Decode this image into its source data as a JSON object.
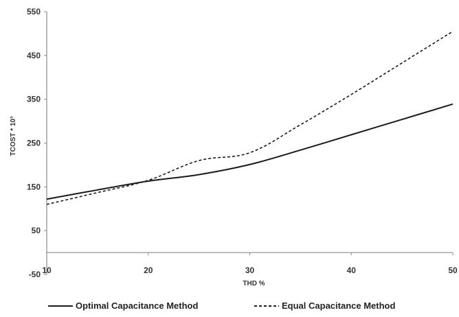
{
  "chart_data": {
    "type": "line",
    "title": "",
    "xlabel": "THD %",
    "ylabel": "TCOST * 10³",
    "xlim": [
      10,
      50
    ],
    "ylim": [
      -50,
      550
    ],
    "x_ticks": [
      10,
      20,
      30,
      40,
      50
    ],
    "y_ticks": [
      -50,
      50,
      150,
      250,
      350,
      450,
      550
    ],
    "x_tick_labels": [
      "10",
      "20",
      "30",
      "40",
      "50"
    ],
    "y_tick_labels": [
      "-50",
      "50",
      "150",
      "250",
      "350",
      "450",
      "550"
    ],
    "grid": false,
    "legend_position": "bottom",
    "series": [
      {
        "name": "Optimal Capacitance Method",
        "style": "solid",
        "color": "#1a1a1a",
        "points": [
          {
            "x": 10,
            "y": 122
          },
          {
            "x": 15,
            "y": 143
          },
          {
            "x": 20,
            "y": 163
          },
          {
            "x": 25,
            "y": 178
          },
          {
            "x": 30,
            "y": 201
          },
          {
            "x": 35,
            "y": 234
          },
          {
            "x": 40,
            "y": 269
          },
          {
            "x": 45,
            "y": 304
          },
          {
            "x": 50,
            "y": 339
          }
        ]
      },
      {
        "name": "Equal Capacitance Method",
        "style": "dashed",
        "color": "#1a1a1a",
        "points": [
          {
            "x": 10,
            "y": 110
          },
          {
            "x": 15,
            "y": 137
          },
          {
            "x": 20,
            "y": 165
          },
          {
            "x": 25,
            "y": 210
          },
          {
            "x": 30,
            "y": 228
          },
          {
            "x": 35,
            "y": 292
          },
          {
            "x": 40,
            "y": 361
          },
          {
            "x": 45,
            "y": 433
          },
          {
            "x": 50,
            "y": 505
          }
        ]
      }
    ]
  }
}
